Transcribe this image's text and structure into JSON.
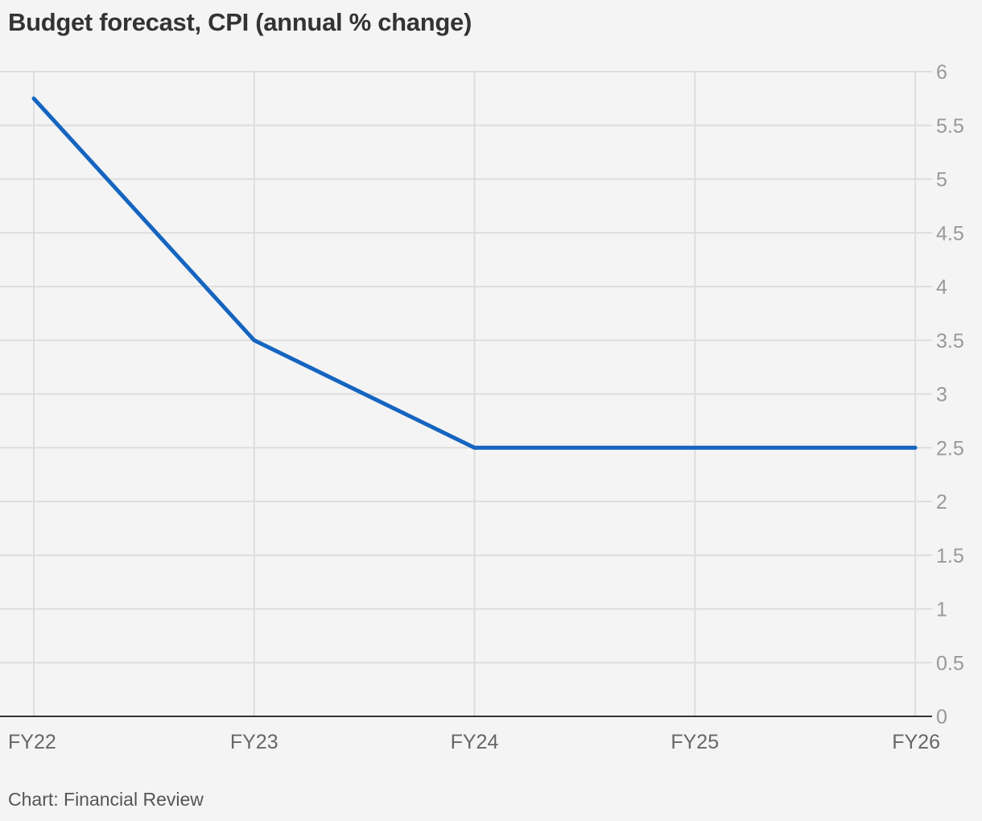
{
  "chart_data": {
    "type": "line",
    "title": "Budget forecast, CPI (annual % change)",
    "source": "Chart: Financial Review",
    "xlabel": "",
    "ylabel": "",
    "categories": [
      "FY22",
      "FY23",
      "FY24",
      "FY25",
      "FY26"
    ],
    "series": [
      {
        "values": [
          5.75,
          3.5,
          2.5,
          2.5,
          2.5
        ],
        "color": "#1565c0"
      }
    ],
    "ylim": [
      0,
      6
    ],
    "yticks": [
      0,
      0.5,
      1,
      1.5,
      2,
      2.5,
      3,
      3.5,
      4,
      4.5,
      5,
      5.5,
      6
    ],
    "ytick_labels": [
      "0",
      "0.5",
      "1",
      "1.5",
      "2",
      "2.5",
      "3",
      "3.5",
      "4",
      "4.5",
      "5",
      "5.5",
      "6"
    ],
    "y_axis_side": "right",
    "grid": true,
    "colors": {
      "grid": "#dddddd",
      "baseline": "#333333",
      "ytick_text": "#999999",
      "xtick_text": "#666666",
      "background": "#f4f4f4"
    }
  }
}
